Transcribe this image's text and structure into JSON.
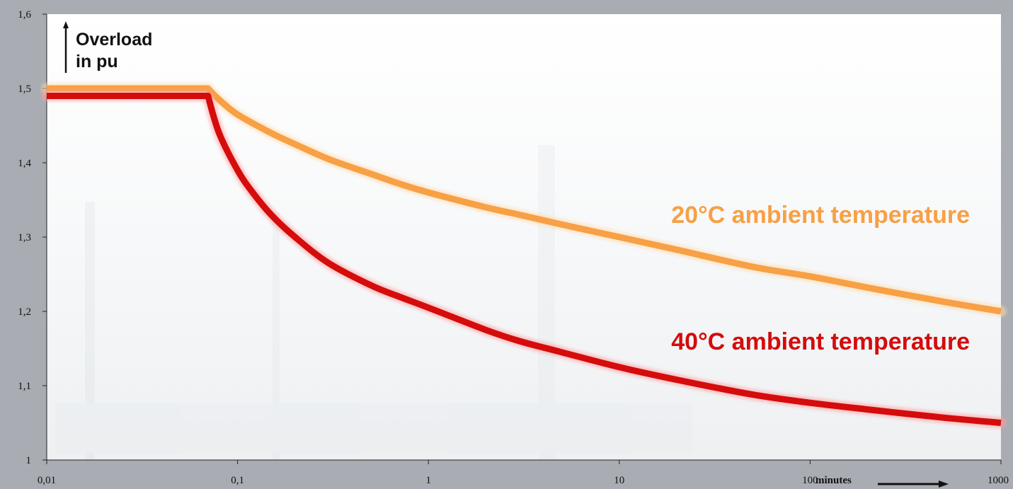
{
  "chart_data": {
    "type": "line",
    "title": "",
    "xlabel": "minutes",
    "ylabel_line1": "Overload",
    "ylabel_line2": "in pu",
    "xscale": "log",
    "xlim": [
      0.01,
      1000
    ],
    "ylim": [
      1.0,
      1.6
    ],
    "grid": false,
    "x_ticks": [
      0.01,
      0.1,
      1,
      10,
      100,
      1000
    ],
    "x_tick_labels": [
      "0,01",
      "0,1",
      "1",
      "10",
      "100",
      "1000"
    ],
    "y_ticks": [
      1.0,
      1.1,
      1.2,
      1.3,
      1.4,
      1.5,
      1.6
    ],
    "y_tick_labels": [
      "1",
      "1,1",
      "1,2",
      "1,3",
      "1,4",
      "1,5",
      "1,6"
    ],
    "series": [
      {
        "name": "20°C ambient temperature",
        "color": "#f7a045",
        "x": [
          0.01,
          0.07,
          0.08,
          0.1,
          0.15,
          0.2,
          0.3,
          0.5,
          0.7,
          1,
          2,
          3,
          5,
          10,
          20,
          50,
          100,
          200,
          500,
          1000
        ],
        "y": [
          1.5,
          1.5,
          1.485,
          1.465,
          1.44,
          1.425,
          1.405,
          1.385,
          1.372,
          1.36,
          1.34,
          1.33,
          1.317,
          1.3,
          1.283,
          1.26,
          1.247,
          1.232,
          1.213,
          1.2
        ]
      },
      {
        "name": "40°C ambient temperature",
        "color": "#d40c0c",
        "x": [
          0.01,
          0.07,
          0.08,
          0.1,
          0.12,
          0.15,
          0.2,
          0.3,
          0.5,
          0.7,
          1,
          2,
          3,
          5,
          10,
          20,
          50,
          100,
          200,
          500,
          1000
        ],
        "y": [
          1.49,
          1.49,
          1.44,
          1.39,
          1.36,
          1.33,
          1.3,
          1.265,
          1.235,
          1.22,
          1.205,
          1.175,
          1.16,
          1.145,
          1.125,
          1.108,
          1.088,
          1.077,
          1.068,
          1.057,
          1.05
        ]
      }
    ]
  }
}
